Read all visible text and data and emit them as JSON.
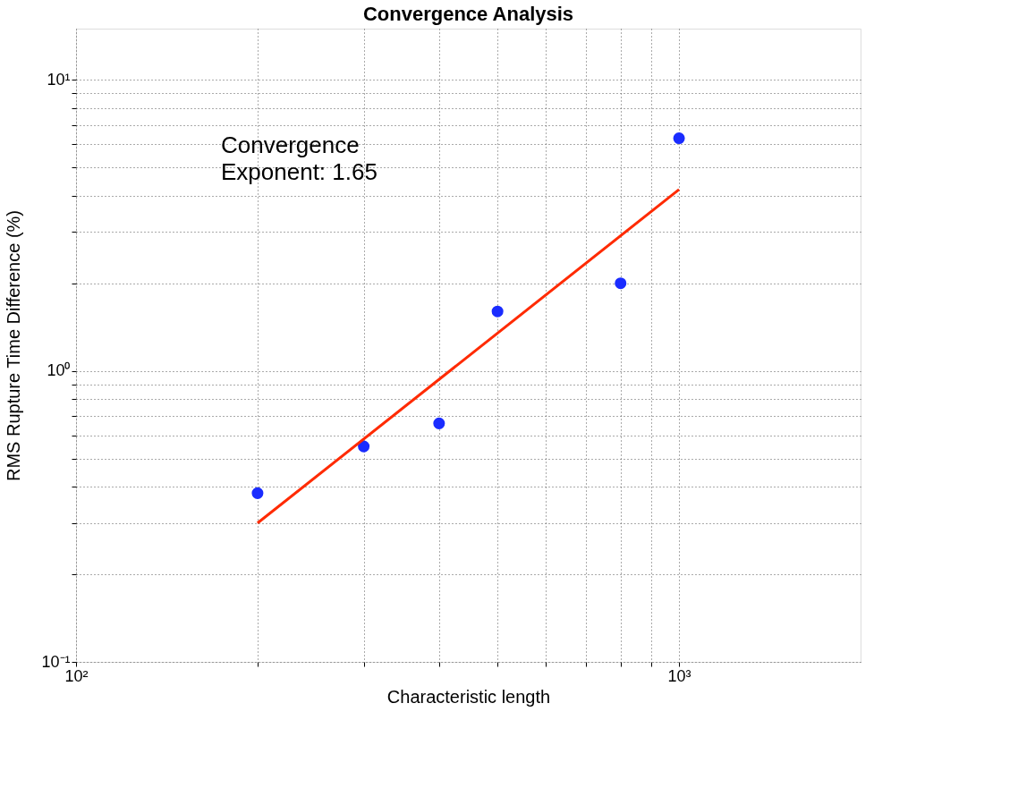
{
  "chart_data": {
    "type": "scatter",
    "title": "Convergence Analysis",
    "xlabel": "Characteristic length",
    "ylabel": "RMS Rupture Time Difference (%)",
    "annotations": [
      "Convergence\nExponent: 1.65"
    ],
    "log": "xy",
    "grid": true,
    "marker": "circle",
    "xlim": [
      100,
      2000
    ],
    "ylim": [
      0.1,
      15
    ],
    "xticks": [
      {
        "value": 100,
        "label": "10²"
      },
      {
        "value": 200,
        "label": null
      },
      {
        "value": 300,
        "label": null
      },
      {
        "value": 400,
        "label": null
      },
      {
        "value": 500,
        "label": null
      },
      {
        "value": 600,
        "label": null
      },
      {
        "value": 700,
        "label": null
      },
      {
        "value": 800,
        "label": null
      },
      {
        "value": 900,
        "label": null
      },
      {
        "value": 1000,
        "label": "10³"
      }
    ],
    "yticks": [
      {
        "value": 0.1,
        "label": "10⁻¹"
      },
      {
        "value": 0.2,
        "label": null
      },
      {
        "value": 0.3,
        "label": null
      },
      {
        "value": 0.4,
        "label": null
      },
      {
        "value": 0.5,
        "label": null
      },
      {
        "value": 0.6,
        "label": null
      },
      {
        "value": 0.7,
        "label": null
      },
      {
        "value": 0.8,
        "label": null
      },
      {
        "value": 0.9,
        "label": null
      },
      {
        "value": 1,
        "label": "10⁰"
      },
      {
        "value": 2,
        "label": null
      },
      {
        "value": 3,
        "label": null
      },
      {
        "value": 4,
        "label": null
      },
      {
        "value": 5,
        "label": null
      },
      {
        "value": 6,
        "label": null
      },
      {
        "value": 7,
        "label": null
      },
      {
        "value": 8,
        "label": null
      },
      {
        "value": 9,
        "label": null
      },
      {
        "value": 10,
        "label": "10¹"
      }
    ],
    "series": [
      {
        "color": "#1a2cff",
        "x": [
          200,
          300,
          400,
          500,
          800,
          1000
        ],
        "values": [
          0.38,
          0.55,
          0.66,
          1.6,
          2.0,
          6.3
        ]
      },
      {
        "type": "line",
        "color": "#ff2a00",
        "marker": "none",
        "line_style": "solid",
        "x": [
          200,
          1000
        ],
        "values": [
          0.3,
          4.2
        ]
      }
    ]
  }
}
